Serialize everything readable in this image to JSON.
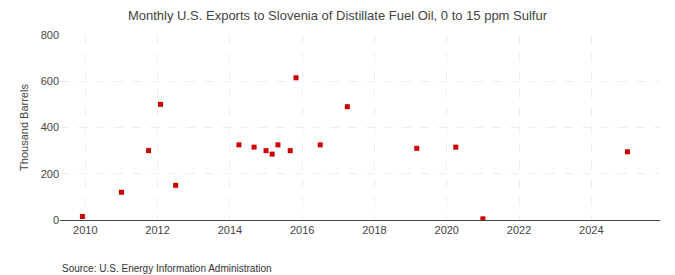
{
  "chart_data": {
    "type": "scatter",
    "title": "Monthly U.S. Exports to Slovenia of Distillate Fuel Oil, 0 to 15 ppm Sulfur",
    "y_label": "Thousand Barrels",
    "annotations": [
      "Source: U.S. Energy Information Administration"
    ],
    "x": [
      2009.92,
      2011.0,
      2011.75,
      2012.08,
      2012.5,
      2014.25,
      2014.67,
      2015.0,
      2015.17,
      2015.33,
      2015.67,
      2015.83,
      2016.5,
      2017.25,
      2019.17,
      2020.25,
      2021.0,
      2025.0
    ],
    "values": [
      15,
      120,
      300,
      500,
      150,
      325,
      315,
      300,
      285,
      325,
      300,
      615,
      325,
      490,
      310,
      315,
      5,
      295
    ],
    "color": "#cc0000",
    "marker": "square",
    "xlim": [
      2009.3,
      2025.9
    ],
    "xticks": [
      2010,
      2012,
      2014,
      2016,
      2018,
      2020,
      2022,
      2024
    ],
    "ylim": [
      0,
      800
    ],
    "yticks": [
      0,
      200,
      400,
      600,
      800
    ],
    "grid": true
  }
}
